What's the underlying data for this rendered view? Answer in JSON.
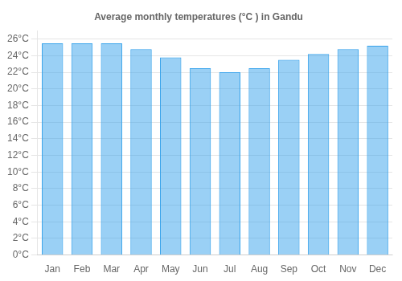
{
  "chart_data": {
    "type": "bar",
    "title": "Average monthly temperatures (°C ) in Gandu",
    "categories": [
      "Jan",
      "Feb",
      "Mar",
      "Apr",
      "May",
      "Jun",
      "Jul",
      "Aug",
      "Sep",
      "Oct",
      "Nov",
      "Dec"
    ],
    "values": [
      25.5,
      25.5,
      25.5,
      24.8,
      23.8,
      22.5,
      22.0,
      22.5,
      23.5,
      24.2,
      24.8,
      25.2
    ],
    "ylim": [
      0,
      27
    ],
    "yticks": [
      {
        "value": 0,
        "label": "0°C"
      },
      {
        "value": 2,
        "label": "2°C"
      },
      {
        "value": 4,
        "label": "4°C"
      },
      {
        "value": 6,
        "label": "6°C"
      },
      {
        "value": 8,
        "label": "8°C"
      },
      {
        "value": 10,
        "label": "10°C"
      },
      {
        "value": 12,
        "label": "12°C"
      },
      {
        "value": 14,
        "label": "14°C"
      },
      {
        "value": 16,
        "label": "16°C"
      },
      {
        "value": 18,
        "label": "18°C"
      },
      {
        "value": 20,
        "label": "20°C"
      },
      {
        "value": 22,
        "label": "22°C"
      },
      {
        "value": 24,
        "label": "24°C"
      },
      {
        "value": 26,
        "label": "26°C"
      }
    ],
    "grid": true
  }
}
